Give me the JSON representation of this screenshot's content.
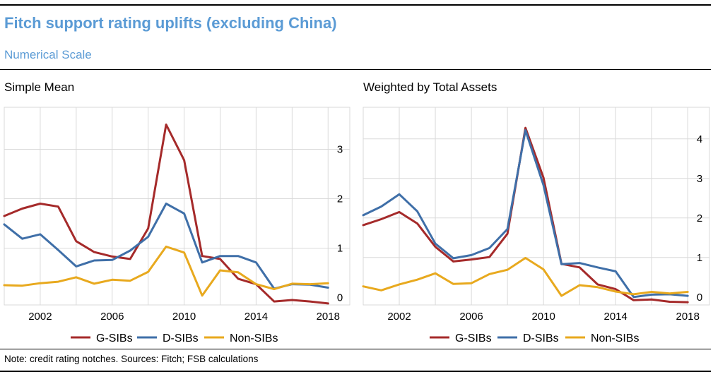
{
  "title": "Fitch support rating uplifts (excluding China)",
  "subtitle": "Numerical Scale",
  "note": "Note: credit rating notches. Sources: Fitch; FSB calculations",
  "colors": {
    "title": "#5b9bd5",
    "G-SIBs": "#a52a2a",
    "D-SIBs": "#3f6fa8",
    "Non-SIBs": "#e8a91e",
    "grid": "#d9d9d9"
  },
  "chart_data": [
    {
      "type": "line",
      "title": "Simple Mean",
      "x": [
        2000,
        2001,
        2002,
        2003,
        2004,
        2005,
        2006,
        2007,
        2008,
        2009,
        2010,
        2011,
        2012,
        2013,
        2014,
        2015,
        2016,
        2017,
        2018
      ],
      "xticks": [
        "2002",
        "2006",
        "2010",
        "2014",
        "2018"
      ],
      "xlim": [
        2000,
        2018.5
      ],
      "ylim": [
        -0.15,
        3.85
      ],
      "yticks": [
        "0",
        "1",
        "2",
        "3"
      ],
      "y_axis_side": "right",
      "grid": true,
      "legend": "bottom",
      "series": [
        {
          "name": "G-SIBs",
          "values": [
            1.65,
            1.8,
            1.9,
            1.84,
            1.14,
            0.92,
            0.83,
            0.78,
            1.4,
            3.5,
            2.78,
            0.84,
            0.78,
            0.38,
            0.27,
            -0.08,
            -0.05,
            -0.08,
            -0.12
          ]
        },
        {
          "name": "D-SIBs",
          "values": [
            1.48,
            1.19,
            1.28,
            0.96,
            0.63,
            0.75,
            0.76,
            0.95,
            1.23,
            1.9,
            1.7,
            0.71,
            0.84,
            0.84,
            0.71,
            0.18,
            0.27,
            0.26,
            0.2
          ]
        },
        {
          "name": "Non-SIBs",
          "values": [
            0.25,
            0.24,
            0.29,
            0.32,
            0.41,
            0.28,
            0.36,
            0.34,
            0.52,
            1.03,
            0.91,
            0.04,
            0.55,
            0.51,
            0.27,
            0.17,
            0.28,
            0.27,
            0.29
          ]
        }
      ]
    },
    {
      "type": "line",
      "title": "Weighted by Total Assets",
      "x": [
        2000,
        2001,
        2002,
        2003,
        2004,
        2005,
        2006,
        2007,
        2008,
        2009,
        2010,
        2011,
        2012,
        2013,
        2014,
        2015,
        2016,
        2017,
        2018
      ],
      "xticks": [
        "2002",
        "2006",
        "2010",
        "2014",
        "2018"
      ],
      "xlim": [
        2000,
        2018.5
      ],
      "ylim": [
        -0.2,
        4.8
      ],
      "yticks": [
        "0",
        "1",
        "2",
        "3",
        "4"
      ],
      "y_axis_side": "right",
      "grid": true,
      "legend": "bottom",
      "series": [
        {
          "name": "G-SIBs",
          "values": [
            1.82,
            1.97,
            2.15,
            1.86,
            1.27,
            0.9,
            0.95,
            1.01,
            1.6,
            4.28,
            3.02,
            0.84,
            0.75,
            0.32,
            0.2,
            -0.08,
            -0.06,
            -0.12,
            -0.13
          ]
        },
        {
          "name": "D-SIBs",
          "values": [
            2.07,
            2.29,
            2.6,
            2.17,
            1.35,
            0.98,
            1.06,
            1.24,
            1.72,
            4.22,
            2.83,
            0.83,
            0.86,
            0.75,
            0.65,
            0.0,
            0.06,
            0.07,
            0.03
          ]
        },
        {
          "name": "Non-SIBs",
          "values": [
            0.27,
            0.17,
            0.32,
            0.44,
            0.6,
            0.33,
            0.35,
            0.58,
            0.69,
            0.99,
            0.7,
            0.03,
            0.3,
            0.25,
            0.14,
            0.07,
            0.13,
            0.09,
            0.13
          ]
        }
      ]
    }
  ]
}
